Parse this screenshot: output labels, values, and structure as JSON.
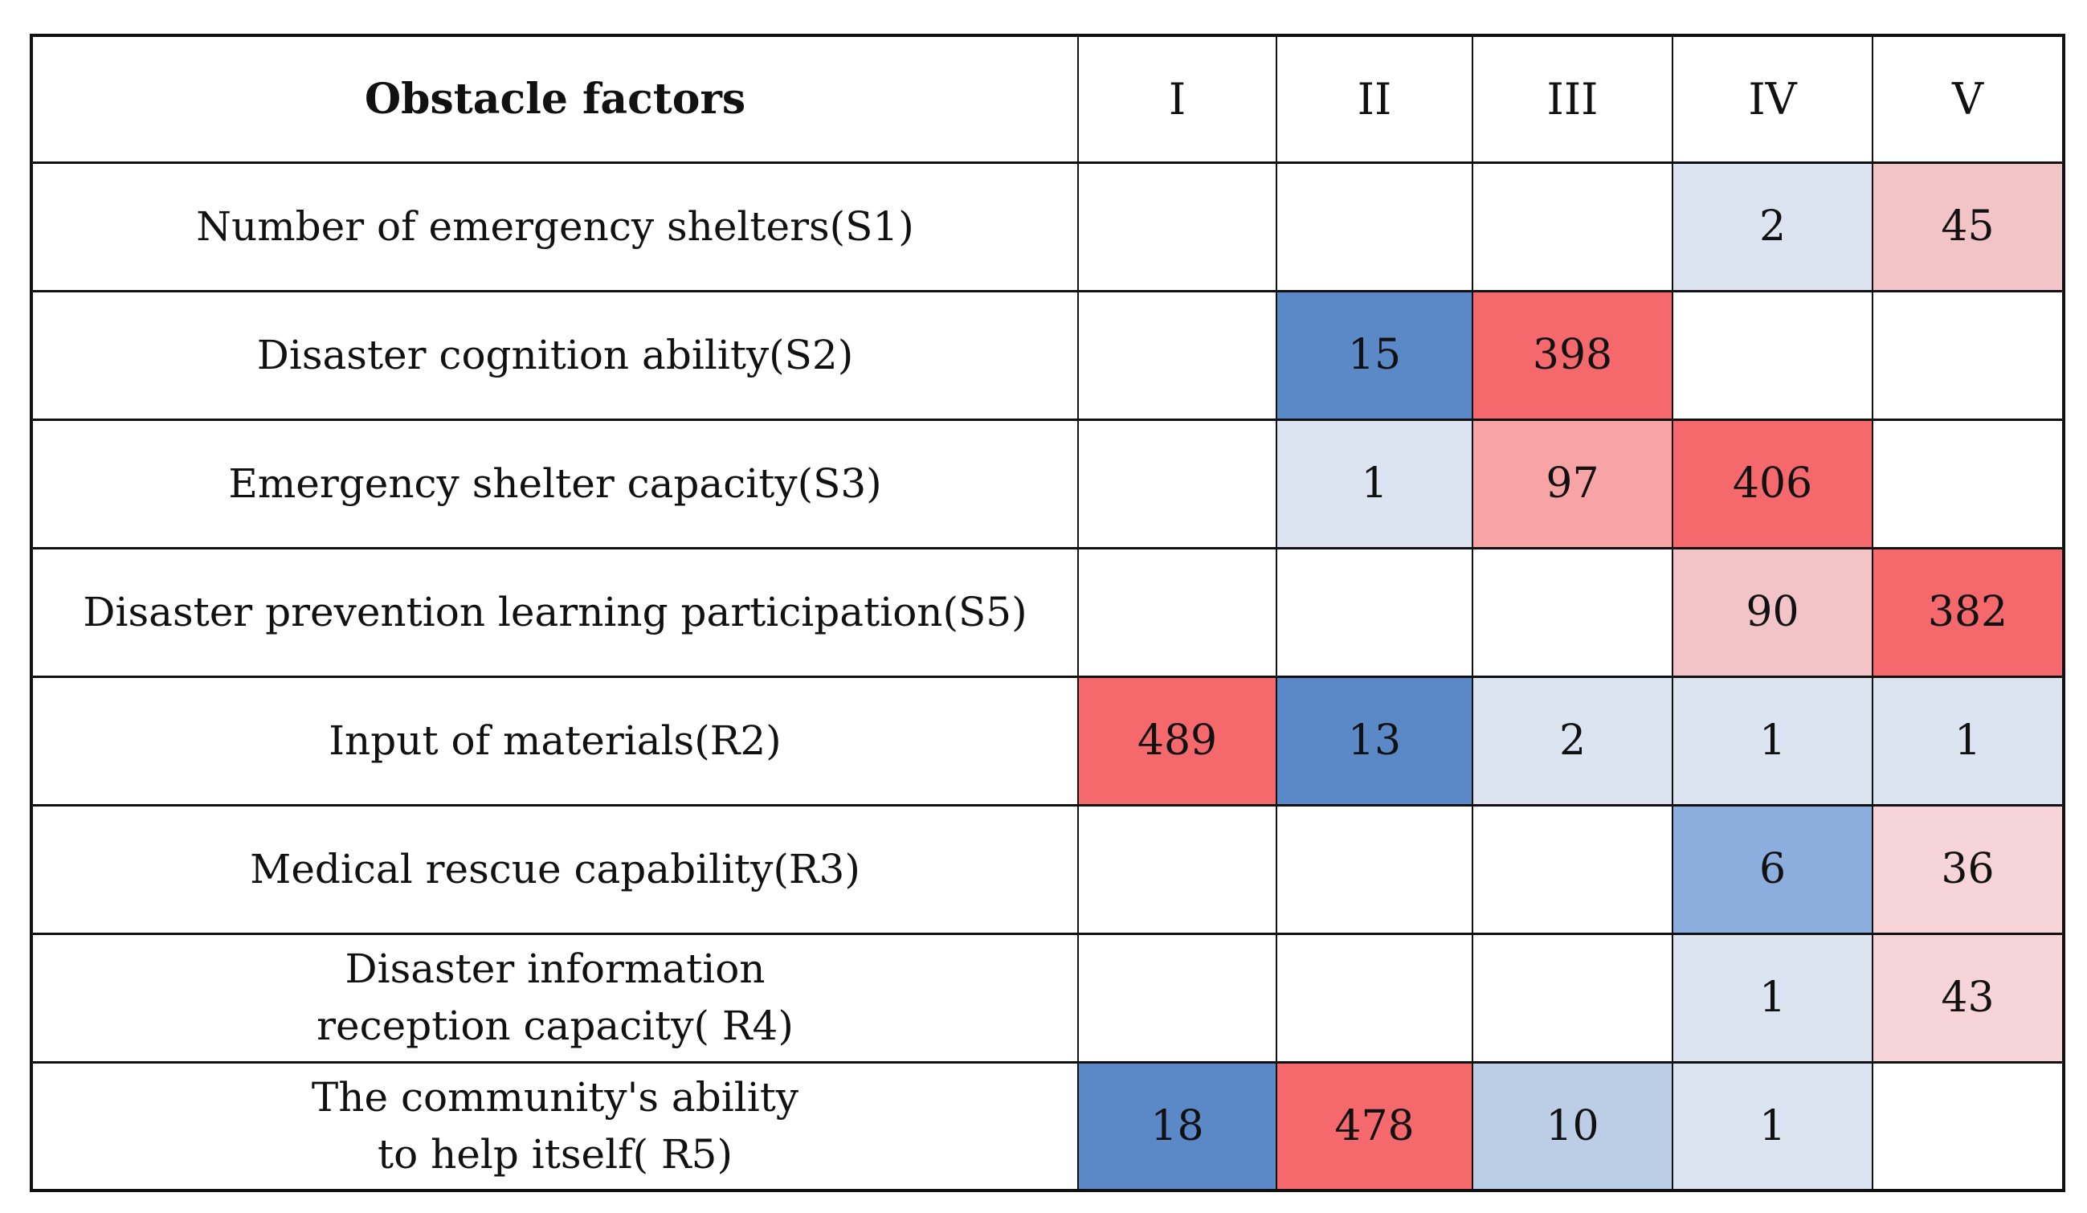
{
  "figure": {
    "header_col_label": "Obstacle factors",
    "columns": [
      "I",
      "II",
      "III",
      "IV",
      "V"
    ]
  },
  "palette": {
    "strong_blue": "#5b88c6",
    "medium_blue": "#8caede",
    "light_blue": "#bccde6",
    "pale_blue": "#dce4f2",
    "red": "#f5696c",
    "medium_pink": "#f8a3a6",
    "light_pink": "#f2c3c7",
    "pale_pink": "#f6d4d7"
  },
  "chart_data": {
    "type": "heatmap",
    "columns": [
      "I",
      "II",
      "III",
      "IV",
      "V"
    ],
    "rows": [
      {
        "label_lines": [
          "Number of emergency shelters(S1)"
        ],
        "values": [
          null,
          null,
          null,
          2,
          45
        ],
        "colors": [
          null,
          null,
          null,
          "pale_blue",
          "light_pink"
        ]
      },
      {
        "label_lines": [
          "Disaster cognition ability(S2)"
        ],
        "values": [
          null,
          15,
          398,
          null,
          null
        ],
        "colors": [
          null,
          "strong_blue",
          "red",
          null,
          null
        ]
      },
      {
        "label_lines": [
          "Emergency shelter capacity(S3)"
        ],
        "values": [
          null,
          1,
          97,
          406,
          null
        ],
        "colors": [
          null,
          "pale_blue",
          "medium_pink",
          "red",
          null
        ]
      },
      {
        "label_lines": [
          "Disaster prevention learning participation(S5)"
        ],
        "values": [
          null,
          null,
          null,
          90,
          382
        ],
        "colors": [
          null,
          null,
          null,
          "light_pink",
          "red"
        ]
      },
      {
        "label_lines": [
          "Input of materials(R2)"
        ],
        "values": [
          489,
          13,
          2,
          1,
          1
        ],
        "colors": [
          "red",
          "strong_blue",
          "pale_blue",
          "pale_blue",
          "pale_blue"
        ]
      },
      {
        "label_lines": [
          "Medical rescue capability(R3)"
        ],
        "values": [
          null,
          null,
          null,
          6,
          36
        ],
        "colors": [
          null,
          null,
          null,
          "medium_blue",
          "pale_pink"
        ]
      },
      {
        "label_lines": [
          "Disaster information",
          "reception capacity( R4)"
        ],
        "values": [
          null,
          null,
          null,
          1,
          43
        ],
        "colors": [
          null,
          null,
          null,
          "pale_blue",
          "pale_pink"
        ]
      },
      {
        "label_lines": [
          "The community's ability",
          "to help itself( R5)"
        ],
        "values": [
          18,
          478,
          10,
          1,
          null
        ],
        "colors": [
          "strong_blue",
          "red",
          "light_blue",
          "pale_blue",
          null
        ]
      }
    ]
  }
}
